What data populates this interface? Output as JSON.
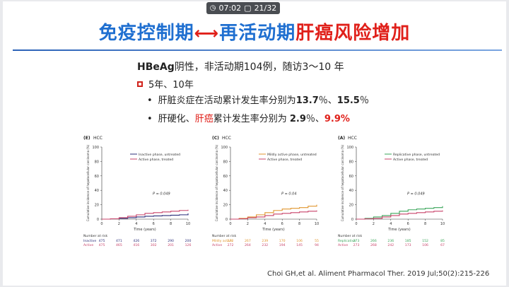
{
  "overlay": {
    "time": "07:02",
    "page": "21/32",
    "icon": "clock-icon"
  },
  "title": {
    "part1": "免疫控制期",
    "part2": "再活动期",
    "part3": "肝癌风险增加"
  },
  "subtitle": {
    "marker": "HBeAg",
    "text": "阴性，非活动期104例，随访3～10 年"
  },
  "section": {
    "label": "5年、10年"
  },
  "bullets": [
    {
      "pre": "肝脏炎症在活动累计发生率分别为",
      "v1": "13.7",
      "mid": "％、",
      "v2": "15.5",
      "post": "％"
    },
    {
      "pre1": "肝硬化、",
      "hl": "肝癌",
      "pre2": "累计发生率分别为 ",
      "v1": "2.9",
      "mid": "％、",
      "v2": "9.9",
      "post": "%"
    }
  ],
  "panels": [
    {
      "tag": "(E)",
      "title": "HCC",
      "ylabel": "Cumulative incidence of hepatocellular carcinoma (%)",
      "xlabel": "Time (years)",
      "pvalue": "P = 0.049",
      "yticks": [
        "0",
        "20",
        "40",
        "60",
        "80",
        "100"
      ],
      "xticks": [
        "0",
        "2",
        "4",
        "6",
        "8",
        "10"
      ],
      "legend": [
        {
          "name": "Inactive phase, untreated",
          "color": "#2b2f7a"
        },
        {
          "name": "Active phase, treated",
          "color": "#c8436a"
        }
      ],
      "risk_header": "Number at risk",
      "risk_rows": [
        {
          "label": "Inactive",
          "color": "#2b2f7a",
          "values": [
            "475",
            "471",
            "426",
            "372",
            "290",
            "200"
          ]
        },
        {
          "label": "Active",
          "color": "#c8436a",
          "values": [
            "475",
            "465",
            "416",
            "302",
            "201",
            "126"
          ]
        }
      ],
      "chart_data": {
        "type": "line",
        "xlim": [
          0,
          10
        ],
        "ylim": [
          0,
          100
        ],
        "series": [
          {
            "name": "Inactive phase, untreated",
            "color": "#2b2f7a",
            "x": [
              0,
              1,
              2,
              3,
              4,
              5,
              6,
              7,
              8,
              9,
              10
            ],
            "y": [
              0,
              0.5,
              1,
              2,
              3,
              4,
              4.5,
              5,
              5.5,
              6,
              8
            ]
          },
          {
            "name": "Active phase, treated",
            "color": "#c8436a",
            "x": [
              0,
              1,
              2,
              3,
              4,
              5,
              6,
              7,
              8,
              9,
              10
            ],
            "y": [
              0,
              0.5,
              2,
              4,
              6,
              8,
              9,
              10,
              11,
              12,
              13
            ]
          }
        ]
      }
    },
    {
      "tag": "(C)",
      "title": "HCC",
      "ylabel": "Cumulative incidence of hepatocellular carcinoma (%)",
      "xlabel": "Time (years)",
      "pvalue": "P = 0.04",
      "yticks": [
        "0",
        "20",
        "40",
        "60",
        "80",
        "100"
      ],
      "xticks": [
        "0",
        "2",
        "4",
        "6",
        "8",
        "10"
      ],
      "legend": [
        {
          "name": "Mildly active phase, untreated",
          "color": "#e0962e"
        },
        {
          "name": "Active phase, treated",
          "color": "#c8436a"
        }
      ],
      "risk_header": "Number at risk",
      "risk_rows": [
        {
          "label": "Mildly active",
          "color": "#e0962e",
          "values": [
            "272",
            "267",
            "239",
            "170",
            "106",
            "55"
          ]
        },
        {
          "label": "Active",
          "color": "#c8436a",
          "values": [
            "272",
            "264",
            "232",
            "194",
            "145",
            "94"
          ]
        }
      ],
      "chart_data": {
        "type": "line",
        "xlim": [
          0,
          10
        ],
        "ylim": [
          0,
          100
        ],
        "series": [
          {
            "name": "Mildly active phase, untreated",
            "color": "#e0962e",
            "x": [
              0,
              1,
              2,
              3,
              4,
              5,
              6,
              7,
              8,
              9,
              10
            ],
            "y": [
              0,
              1,
              3,
              6,
              9,
              12,
              14,
              15,
              16,
              18,
              20
            ]
          },
          {
            "name": "Active phase, treated",
            "color": "#c8436a",
            "x": [
              0,
              1,
              2,
              3,
              4,
              5,
              6,
              7,
              8,
              9,
              10
            ],
            "y": [
              0,
              0.5,
              2,
              3,
              5,
              7,
              8,
              9,
              10,
              11,
              12
            ]
          }
        ]
      }
    },
    {
      "tag": "(A)",
      "title": "HCC",
      "ylabel": "Cumulative incidence of hepatocellular carcinoma (%)",
      "xlabel": "Time (years)",
      "pvalue": "P = 0.049",
      "yticks": [
        "0",
        "20",
        "40",
        "60",
        "80",
        "100"
      ],
      "xticks": [
        "0",
        "2",
        "4",
        "6",
        "8",
        "10"
      ],
      "legend": [
        {
          "name": "Replicative phase, untreated",
          "color": "#3aa55a"
        },
        {
          "name": "Active phase, treated",
          "color": "#c8436a"
        }
      ],
      "risk_header": "Number at risk",
      "risk_rows": [
        {
          "label": "Replicative",
          "color": "#3aa55a",
          "values": [
            "273",
            "266",
            "236",
            "185",
            "152",
            "85"
          ]
        },
        {
          "label": "Active",
          "color": "#c8436a",
          "values": [
            "273",
            "268",
            "242",
            "173",
            "106",
            "67"
          ]
        }
      ],
      "chart_data": {
        "type": "line",
        "xlim": [
          0,
          10
        ],
        "ylim": [
          0,
          100
        ],
        "series": [
          {
            "name": "Replicative phase, untreated",
            "color": "#3aa55a",
            "x": [
              0,
              1,
              2,
              3,
              4,
              5,
              6,
              7,
              8,
              9,
              10
            ],
            "y": [
              0,
              1,
              3,
              5,
              8,
              11,
              13,
              14,
              15,
              16,
              18
            ]
          },
          {
            "name": "Active phase, treated",
            "color": "#c8436a",
            "x": [
              0,
              1,
              2,
              3,
              4,
              5,
              6,
              7,
              8,
              9,
              10
            ],
            "y": [
              0,
              0.5,
              1,
              3,
              5,
              7,
              8,
              9,
              10,
              11,
              12
            ]
          }
        ]
      }
    }
  ],
  "citation": "Choi GH,et al. Aliment Pharmacol Ther. 2019 Jul;50(2):215-226",
  "colors": {
    "title_blue": "#1f6fd0",
    "title_red": "#e0201a",
    "rule": "#2c63b8"
  }
}
